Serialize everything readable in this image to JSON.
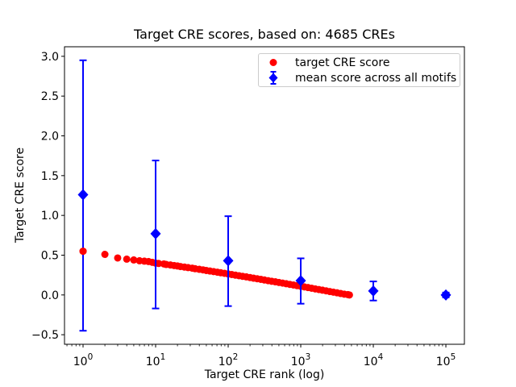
{
  "title": "Target CRE scores, based on: 4685 CREs",
  "axes": {
    "xlabel": "Target CRE rank (log)",
    "ylabel": "Target CRE score",
    "x_tick_base": "10",
    "x_tick_exponents": [
      "0",
      "1",
      "2",
      "3",
      "4",
      "5"
    ],
    "y_tick_labels": [
      "3.0",
      "2.5",
      "2.0",
      "1.5",
      "1.0",
      "0.5",
      "0.0",
      "−0.5"
    ]
  },
  "legend": {
    "items": [
      {
        "label": "target CRE score",
        "marker": "circle",
        "color": "#ff0000"
      },
      {
        "label": "mean score across all motifs",
        "marker": "diamond-errorbar",
        "color": "#0000ff"
      }
    ]
  },
  "colors": {
    "target_score": "#ff0000",
    "mean_score": "#0000ff",
    "axis": "#000000",
    "legend_border": "#cccccc",
    "background": "#ffffff"
  },
  "chart_data": {
    "type": "scatter",
    "title": "Target CRE scores, based on: 4685 CREs",
    "xlabel": "Target CRE rank (log)",
    "ylabel": "Target CRE score",
    "x_scale": "log",
    "grid": false,
    "legend_position": "upper center-right inside",
    "xlim": [
      0.555,
      180000
    ],
    "ylim": [
      -0.62,
      3.12
    ],
    "x_major_ticks": [
      1,
      10,
      100,
      1000,
      10000,
      100000
    ],
    "y_major_ticks": [
      3.0,
      2.5,
      2.0,
      1.5,
      1.0,
      0.5,
      0.0,
      -0.5
    ],
    "series": [
      {
        "name": "target CRE score",
        "marker": "circle",
        "color": "#ff0000",
        "points": [
          [
            1,
            0.55
          ],
          [
            2,
            0.51
          ],
          [
            3,
            0.465
          ],
          [
            4,
            0.45
          ],
          [
            5,
            0.44
          ],
          [
            6,
            0.43
          ],
          [
            7,
            0.425
          ],
          [
            8,
            0.42
          ],
          [
            9,
            0.41
          ],
          [
            10,
            0.4
          ],
          [
            11,
            0.396
          ],
          [
            13,
            0.39
          ],
          [
            14,
            0.383
          ],
          [
            16,
            0.377
          ],
          [
            18,
            0.37
          ],
          [
            20,
            0.364
          ],
          [
            22,
            0.357
          ],
          [
            25,
            0.35
          ],
          [
            28,
            0.344
          ],
          [
            32,
            0.337
          ],
          [
            35,
            0.33
          ],
          [
            40,
            0.322
          ],
          [
            45,
            0.315
          ],
          [
            50,
            0.308
          ],
          [
            56,
            0.301
          ],
          [
            63,
            0.294
          ],
          [
            71,
            0.286
          ],
          [
            79,
            0.279
          ],
          [
            89,
            0.272
          ],
          [
            100,
            0.264
          ],
          [
            112,
            0.257
          ],
          [
            126,
            0.249
          ],
          [
            141,
            0.242
          ],
          [
            158,
            0.234
          ],
          [
            178,
            0.227
          ],
          [
            200,
            0.219
          ],
          [
            224,
            0.211
          ],
          [
            251,
            0.204
          ],
          [
            282,
            0.196
          ],
          [
            316,
            0.188
          ],
          [
            355,
            0.18
          ],
          [
            398,
            0.172
          ],
          [
            447,
            0.165
          ],
          [
            501,
            0.157
          ],
          [
            562,
            0.149
          ],
          [
            631,
            0.141
          ],
          [
            708,
            0.133
          ],
          [
            794,
            0.125
          ],
          [
            891,
            0.117
          ],
          [
            1000,
            0.109
          ],
          [
            1122,
            0.101
          ],
          [
            1259,
            0.093
          ],
          [
            1413,
            0.085
          ],
          [
            1585,
            0.076
          ],
          [
            1778,
            0.068
          ],
          [
            1995,
            0.06
          ],
          [
            2239,
            0.052
          ],
          [
            2512,
            0.043
          ],
          [
            2818,
            0.035
          ],
          [
            3162,
            0.027
          ],
          [
            3548,
            0.018
          ],
          [
            3981,
            0.01
          ],
          [
            4467,
            0.004
          ],
          [
            4685,
            0.0
          ]
        ]
      },
      {
        "name": "mean score across all motifs",
        "marker": "diamond",
        "color": "#0000ff",
        "points": [
          [
            1,
            1.26
          ],
          [
            10,
            0.77
          ],
          [
            100,
            0.43
          ],
          [
            1000,
            0.18
          ],
          [
            10000,
            0.05
          ],
          [
            100000,
            0.0
          ]
        ],
        "err_hi": [
          2.95,
          1.69,
          0.99,
          0.46,
          0.17,
          0.03
        ],
        "err_lo": [
          -0.45,
          -0.17,
          -0.14,
          -0.11,
          -0.07,
          -0.03
        ]
      }
    ]
  }
}
